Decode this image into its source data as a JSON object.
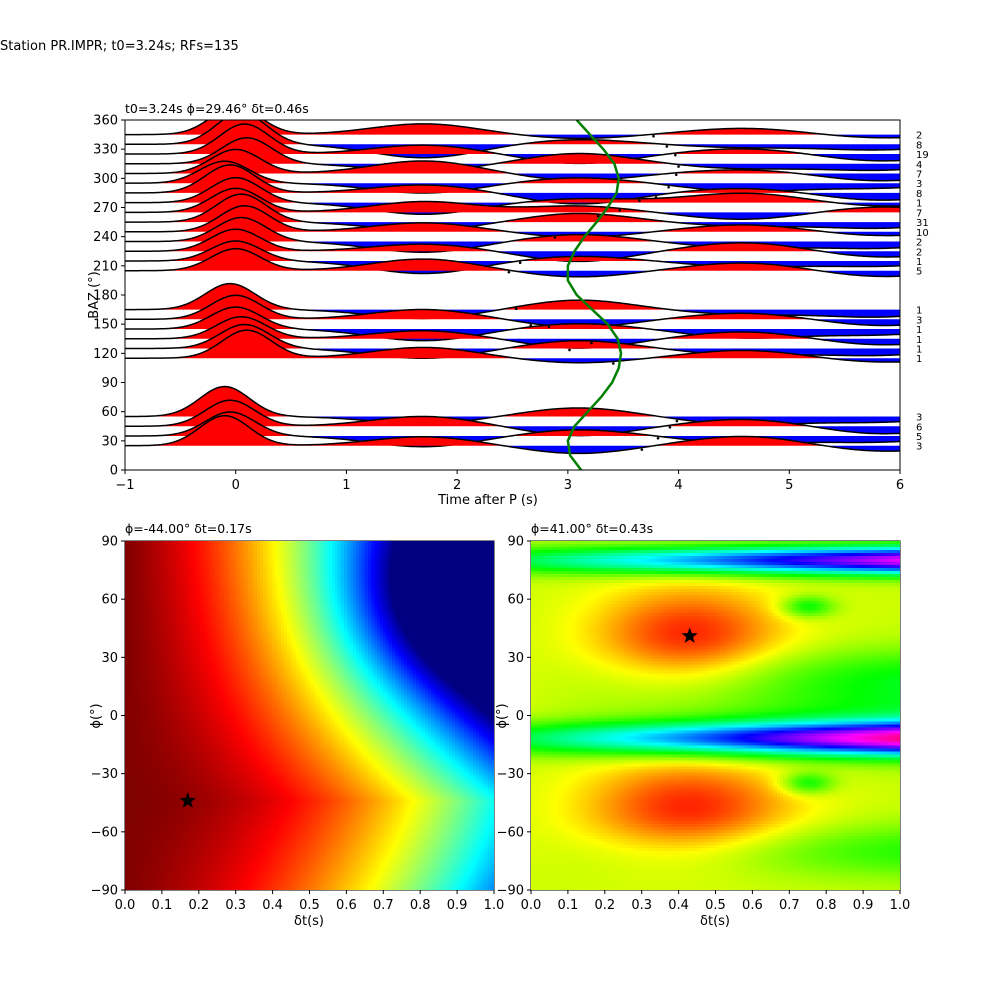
{
  "figure": {
    "suptitle": "Station PR.IMPR; t0=3.24s; RFs=135"
  },
  "chart_data": [
    {
      "type": "line",
      "panel": "receiver-function-traces",
      "title": "t0=3.24s ϕ=29.46° δt=0.46s",
      "xlabel": "Time after P (s)",
      "ylabel": "BAZ (°)",
      "xlim": [
        -1,
        6
      ],
      "ylim": [
        0,
        360
      ],
      "xticks": [
        "−1",
        "0",
        "1",
        "2",
        "3",
        "4",
        "5",
        "6"
      ],
      "yticks": [
        "0",
        "30",
        "60",
        "90",
        "120",
        "150",
        "180",
        "210",
        "240",
        "270",
        "300",
        "330",
        "360"
      ],
      "colors": {
        "positive": "#ff0000",
        "negative": "#0000ff",
        "curve": "#008000",
        "trace": "#000000"
      },
      "traces": [
        {
          "baz": 345,
          "count": "2",
          "amp": 28,
          "delay": 0.0,
          "a1": 1.2,
          "a2": -0.5,
          "a3": 0.8
        },
        {
          "baz": 335,
          "count": "8",
          "amp": 32,
          "delay": 0.05,
          "a1": -1.5,
          "a2": 0.6,
          "a3": -0.4
        },
        {
          "baz": 325,
          "count": "19",
          "amp": 30,
          "delay": 0.08,
          "a1": 1.0,
          "a2": -1.2,
          "a3": 0.7
        },
        {
          "baz": 315,
          "count": "4",
          "amp": 26,
          "delay": 0.1,
          "a1": -0.8,
          "a2": 1.3,
          "a3": -0.6
        },
        {
          "baz": 305,
          "count": "7",
          "amp": 24,
          "delay": 0.0,
          "a1": 1.4,
          "a2": -0.9,
          "a3": 0.5
        },
        {
          "baz": 295,
          "count": "3",
          "amp": 22,
          "delay": -0.1,
          "a1": -1.1,
          "a2": 0.7,
          "a3": -1.0
        },
        {
          "baz": 285,
          "count": "8",
          "amp": 28,
          "delay": -0.05,
          "a1": 0.9,
          "a2": -1.4,
          "a3": 0.6
        },
        {
          "baz": 275,
          "count": "1",
          "amp": 25,
          "delay": 0.0,
          "a1": -1.3,
          "a2": 0.5,
          "a3": 1.2
        },
        {
          "baz": 265,
          "count": "7",
          "amp": 24,
          "delay": 0.0,
          "a1": 1.2,
          "a2": 0.8,
          "a3": -0.9
        },
        {
          "baz": 255,
          "count": "31",
          "amp": 28,
          "delay": 0.05,
          "a1": -0.9,
          "a2": 1.1,
          "a3": -0.5
        },
        {
          "baz": 245,
          "count": "10",
          "amp": 26,
          "delay": 0.08,
          "a1": 1.0,
          "a2": -0.7,
          "a3": 0.9
        },
        {
          "baz": 235,
          "count": "2",
          "amp": 24,
          "delay": 0.05,
          "a1": -1.2,
          "a2": 0.9,
          "a3": -0.8
        },
        {
          "baz": 225,
          "count": "2",
          "amp": 22,
          "delay": 0.0,
          "a1": 0.8,
          "a2": -1.3,
          "a3": 1.1
        },
        {
          "baz": 215,
          "count": "1",
          "amp": 20,
          "delay": 0.0,
          "a1": -1.4,
          "a2": 0.6,
          "a3": -0.7
        },
        {
          "baz": 205,
          "count": "5",
          "amp": 22,
          "delay": 0.0,
          "a1": 1.3,
          "a2": -0.8,
          "a3": 1.0
        },
        {
          "baz": 165,
          "count": "1",
          "amp": 26,
          "delay": -0.05,
          "a1": -1.0,
          "a2": 1.2,
          "a3": -0.6
        },
        {
          "baz": 155,
          "count": "3",
          "amp": 24,
          "delay": 0.0,
          "a1": 1.1,
          "a2": -1.0,
          "a3": 0.8
        },
        {
          "baz": 145,
          "count": "1",
          "amp": 22,
          "delay": 0.0,
          "a1": -1.3,
          "a2": 0.7,
          "a3": -1.1
        },
        {
          "baz": 135,
          "count": "1",
          "amp": 22,
          "delay": 0.05,
          "a1": 0.9,
          "a2": -1.2,
          "a3": 0.9
        },
        {
          "baz": 125,
          "count": "1",
          "amp": 24,
          "delay": 0.08,
          "a1": -1.1,
          "a2": 1.0,
          "a3": -0.8
        },
        {
          "baz": 115,
          "count": "1",
          "amp": 28,
          "delay": 0.1,
          "a1": 1.2,
          "a2": -0.6,
          "a3": 1.0
        },
        {
          "baz": 55,
          "count": "3",
          "amp": 30,
          "delay": -0.1,
          "a1": -0.8,
          "a2": 1.1,
          "a3": -1.0
        },
        {
          "baz": 45,
          "count": "6",
          "amp": 26,
          "delay": -0.05,
          "a1": 1.1,
          "a2": -1.2,
          "a3": 0.9
        },
        {
          "baz": 35,
          "count": "5",
          "amp": 24,
          "delay": -0.05,
          "a1": -1.2,
          "a2": 0.8,
          "a3": -0.9
        },
        {
          "baz": 25,
          "count": "3",
          "amp": 30,
          "delay": -0.1,
          "a1": 1.0,
          "a2": -1.0,
          "a3": 1.2
        }
      ],
      "green_curve": {
        "name": "",
        "baz": [
          0,
          15,
          30,
          45,
          60,
          75,
          90,
          105,
          120,
          135,
          150,
          165,
          180,
          195,
          210,
          225,
          240,
          255,
          270,
          285,
          300,
          315,
          330,
          345,
          360
        ],
        "time": [
          3.12,
          3.02,
          3.0,
          3.06,
          3.18,
          3.3,
          3.4,
          3.46,
          3.48,
          3.45,
          3.36,
          3.22,
          3.08,
          3.0,
          3.0,
          3.06,
          3.15,
          3.26,
          3.36,
          3.44,
          3.46,
          3.42,
          3.32,
          3.2,
          3.08
        ]
      }
    },
    {
      "type": "heatmap",
      "panel": "energy-grid-1",
      "title": "ϕ=-44.00° δt=0.17s",
      "xlabel": "δt(s)",
      "ylabel": "ϕ(°)",
      "xlim": [
        0,
        1
      ],
      "ylim": [
        -90,
        90
      ],
      "xticks": [
        "0.0",
        "0.1",
        "0.2",
        "0.3",
        "0.4",
        "0.5",
        "0.6",
        "0.7",
        "0.8",
        "0.9",
        "1.0"
      ],
      "yticks": [
        "−90",
        "−60",
        "−30",
        "0",
        "30",
        "60",
        "90"
      ],
      "colormap": "jet",
      "best": {
        "dt": 0.17,
        "phi": -44
      }
    },
    {
      "type": "heatmap",
      "panel": "energy-grid-2",
      "title": "ϕ=41.00° δt=0.43s",
      "xlabel": "δt(s)",
      "ylabel": "ϕ(°)",
      "xlim": [
        0,
        1
      ],
      "ylim": [
        -90,
        90
      ],
      "xticks": [
        "0.0",
        "0.1",
        "0.2",
        "0.3",
        "0.4",
        "0.5",
        "0.6",
        "0.7",
        "0.8",
        "0.9",
        "1.0"
      ],
      "yticks": [
        "−90",
        "−60",
        "−30",
        "0",
        "30",
        "60",
        "90"
      ],
      "colormap": "hsv",
      "best": {
        "dt": 0.43,
        "phi": 41
      }
    }
  ]
}
